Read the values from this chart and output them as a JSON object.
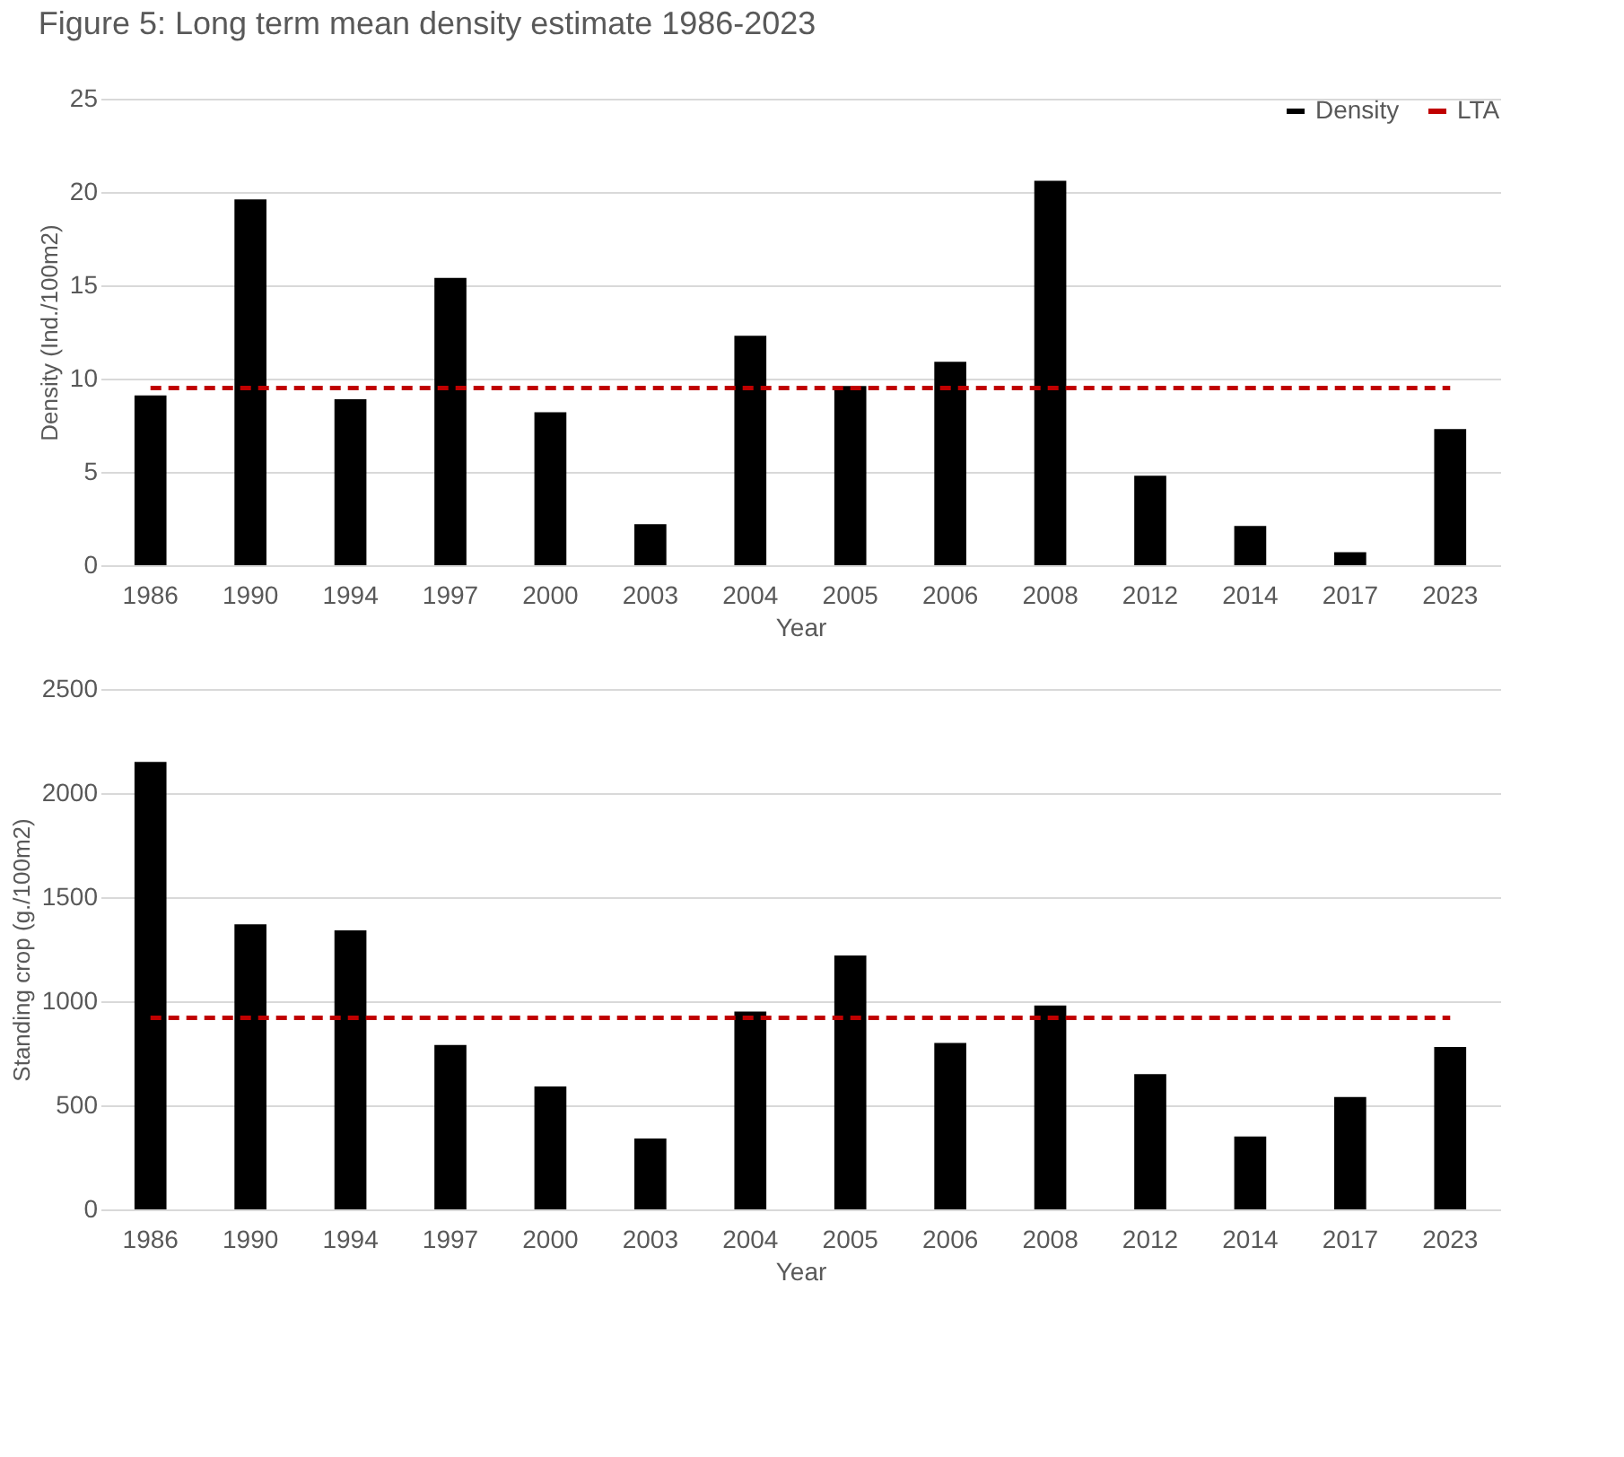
{
  "chart_data": [
    {
      "type": "bar",
      "title": "Figure 5: Long term mean density estimate 1986-2023",
      "xlabel": "Year",
      "ylabel": "Density (Ind./100m2)",
      "categories": [
        "1986",
        "1990",
        "1994",
        "1997",
        "2000",
        "2003",
        "2004",
        "2005",
        "2006",
        "2008",
        "2012",
        "2014",
        "2017",
        "2023"
      ],
      "series": [
        {
          "name": "Density",
          "color": "#000000",
          "values": [
            9.1,
            19.6,
            8.9,
            15.4,
            8.2,
            2.2,
            12.3,
            9.6,
            10.9,
            20.6,
            4.8,
            2.1,
            0.7,
            7.3
          ]
        },
        {
          "name": "LTA",
          "type": "line",
          "line_style": "dashed",
          "color": "#c00000",
          "values": [
            9.5,
            9.5,
            9.5,
            9.5,
            9.5,
            9.5,
            9.5,
            9.5,
            9.5,
            9.5,
            9.5,
            9.5,
            9.5,
            9.5
          ]
        }
      ],
      "ylim": [
        0,
        25
      ],
      "yticks": [
        0,
        5,
        10,
        15,
        20,
        25
      ],
      "grid": "y",
      "legend": "top right"
    },
    {
      "type": "bar",
      "xlabel": "Year",
      "ylabel": "Standing crop (g./100m2)",
      "categories": [
        "1986",
        "1990",
        "1994",
        "1997",
        "2000",
        "2003",
        "2004",
        "2005",
        "2006",
        "2008",
        "2012",
        "2014",
        "2017",
        "2023"
      ],
      "series": [
        {
          "color": "#000000",
          "values": [
            2150,
            1370,
            1340,
            790,
            590,
            340,
            950,
            1220,
            800,
            980,
            650,
            350,
            540,
            780
          ]
        },
        {
          "type": "line",
          "line_style": "dashed",
          "color": "#c00000",
          "values": [
            920,
            920,
            920,
            920,
            920,
            920,
            920,
            920,
            920,
            920,
            920,
            920,
            920,
            920
          ]
        }
      ],
      "ylim": [
        0,
        2500
      ],
      "yticks": [
        0,
        500,
        1000,
        1500,
        2000,
        2500
      ],
      "grid": "y",
      "legend": false
    }
  ]
}
